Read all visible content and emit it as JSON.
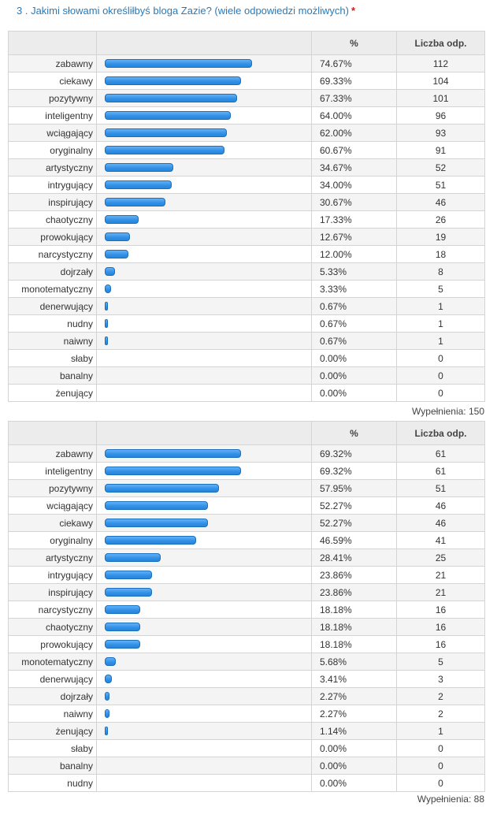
{
  "question": {
    "text": "3 . Jakimi słowami określiłbyś bloga Zazie? (wiele odpowiedzi możliwych)",
    "required_mark": "*"
  },
  "headers": {
    "label": "",
    "bar": "",
    "pct": "%",
    "count": "Liczba odp."
  },
  "colors": {
    "bar": "#2f8fe6",
    "bar_border": "#1a6fbd",
    "question": "#2a7ab8",
    "required": "#d6191b"
  },
  "chart_data": [
    {
      "type": "bar",
      "orientation": "horizontal",
      "value_unit": "%",
      "fill_text": "Wypełnienia: 150",
      "categories": [
        "zabawny",
        "ciekawy",
        "pozytywny",
        "inteligentny",
        "wciągający",
        "oryginalny",
        "artystyczny",
        "intrygujący",
        "inspirujący",
        "chaotyczny",
        "prowokujący",
        "narcystyczny",
        "dojrzały",
        "monotematyczny",
        "denerwujący",
        "nudny",
        "naiwny",
        "słaby",
        "banalny",
        "żenujący"
      ],
      "percent_labels": [
        "74.67%",
        "69.33%",
        "67.33%",
        "64.00%",
        "62.00%",
        "60.67%",
        "34.67%",
        "34.00%",
        "30.67%",
        "17.33%",
        "12.67%",
        "12.00%",
        "5.33%",
        "3.33%",
        "0.67%",
        "0.67%",
        "0.67%",
        "0.00%",
        "0.00%",
        "0.00%"
      ],
      "values": [
        74.67,
        69.33,
        67.33,
        64.0,
        62.0,
        60.67,
        34.67,
        34.0,
        30.67,
        17.33,
        12.67,
        12.0,
        5.33,
        3.33,
        0.67,
        0.67,
        0.67,
        0.0,
        0.0,
        0.0
      ],
      "counts": [
        "112",
        "104",
        "101",
        "96",
        "93",
        "91",
        "52",
        "51",
        "46",
        "26",
        "19",
        "18",
        "8",
        "5",
        "1",
        "1",
        "1",
        "0",
        "0",
        "0"
      ]
    },
    {
      "type": "bar",
      "orientation": "horizontal",
      "value_unit": "%",
      "fill_text": "Wypełnienia: 88",
      "categories": [
        "zabawny",
        "inteligentny",
        "pozytywny",
        "wciągający",
        "ciekawy",
        "oryginalny",
        "artystyczny",
        "intrygujący",
        "inspirujący",
        "narcystyczny",
        "chaotyczny",
        "prowokujący",
        "monotematyczny",
        "denerwujący",
        "dojrzały",
        "naiwny",
        "żenujący",
        "słaby",
        "banalny",
        "nudny"
      ],
      "percent_labels": [
        "69.32%",
        "69.32%",
        "57.95%",
        "52.27%",
        "52.27%",
        "46.59%",
        "28.41%",
        "23.86%",
        "23.86%",
        "18.18%",
        "18.18%",
        "18.18%",
        "5.68%",
        "3.41%",
        "2.27%",
        "2.27%",
        "1.14%",
        "0.00%",
        "0.00%",
        "0.00%"
      ],
      "values": [
        69.32,
        69.32,
        57.95,
        52.27,
        52.27,
        46.59,
        28.41,
        23.86,
        23.86,
        18.18,
        18.18,
        18.18,
        5.68,
        3.41,
        2.27,
        2.27,
        1.14,
        0.0,
        0.0,
        0.0
      ],
      "counts": [
        "61",
        "61",
        "51",
        "46",
        "46",
        "41",
        "25",
        "21",
        "21",
        "16",
        "16",
        "16",
        "5",
        "3",
        "2",
        "2",
        "1",
        "0",
        "0",
        "0"
      ]
    }
  ]
}
